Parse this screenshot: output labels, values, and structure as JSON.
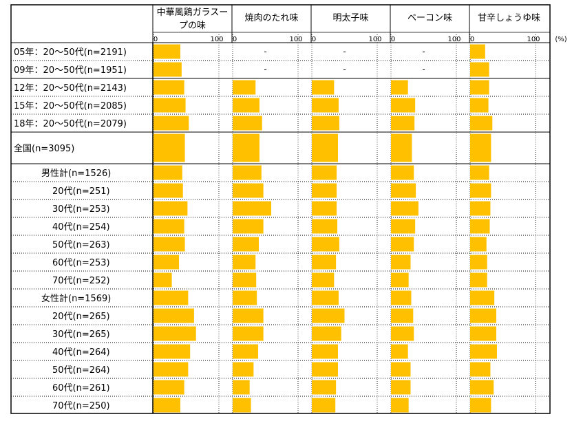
{
  "chart_data": {
    "type": "bar",
    "orientation": "horizontal",
    "layout": "small-multiples",
    "unit": "(%)",
    "xlim": [
      0,
      100
    ],
    "axis_tick_labels": [
      "0",
      "100"
    ],
    "bar_color": "#FFC000",
    "missing_marker": "-",
    "columns": [
      "中華風鶏ガラスープの味",
      "焼肉のたれ味",
      "明太子味",
      "ベーコン味",
      "甘辛しょうゆ味"
    ],
    "rows": [
      {
        "label": "05年：20～50代(n=2191)",
        "values": [
          41,
          null,
          null,
          null,
          23
        ]
      },
      {
        "label": "09年：20～50代(n=1951)",
        "values": [
          43,
          null,
          null,
          null,
          29
        ]
      },
      {
        "label": "12年：20～50代(n=2143)",
        "values": [
          47,
          35,
          34,
          26,
          29
        ]
      },
      {
        "label": "15年：20～50代(n=2085)",
        "values": [
          49,
          41,
          41,
          37,
          28
        ]
      },
      {
        "label": "18年：20～50代(n=2079)",
        "values": [
          54,
          45,
          42,
          36,
          34
        ]
      },
      {
        "label": "全国(n=3095)",
        "values": [
          48,
          41,
          40,
          32,
          32
        ]
      },
      {
        "label": "男性計(n=1526)",
        "values": [
          44,
          44,
          38,
          35,
          29
        ]
      },
      {
        "label": "20代(n=251)",
        "values": [
          45,
          47,
          38,
          38,
          32
        ]
      },
      {
        "label": "30代(n=253)",
        "values": [
          52,
          59,
          38,
          42,
          31
        ]
      },
      {
        "label": "40代(n=254)",
        "values": [
          47,
          47,
          39,
          37,
          30
        ]
      },
      {
        "label": "50代(n=263)",
        "values": [
          48,
          40,
          42,
          35,
          25
        ]
      },
      {
        "label": "60代(n=253)",
        "values": [
          39,
          35,
          37,
          30,
          26
        ]
      },
      {
        "label": "70代(n=252)",
        "values": [
          28,
          36,
          34,
          27,
          26
        ]
      },
      {
        "label": "女性計(n=1569)",
        "values": [
          53,
          37,
          41,
          31,
          37
        ]
      },
      {
        "label": "20代(n=265)",
        "values": [
          62,
          47,
          50,
          34,
          40
        ]
      },
      {
        "label": "30代(n=265)",
        "values": [
          65,
          47,
          45,
          35,
          40
        ]
      },
      {
        "label": "40代(n=264)",
        "values": [
          56,
          39,
          40,
          26,
          41
        ]
      },
      {
        "label": "50代(n=264)",
        "values": [
          53,
          32,
          40,
          30,
          31
        ]
      },
      {
        "label": "60代(n=261)",
        "values": [
          47,
          26,
          37,
          30,
          36
        ]
      },
      {
        "label": "70代(n=250)",
        "values": [
          41,
          28,
          36,
          27,
          32
        ]
      }
    ]
  }
}
